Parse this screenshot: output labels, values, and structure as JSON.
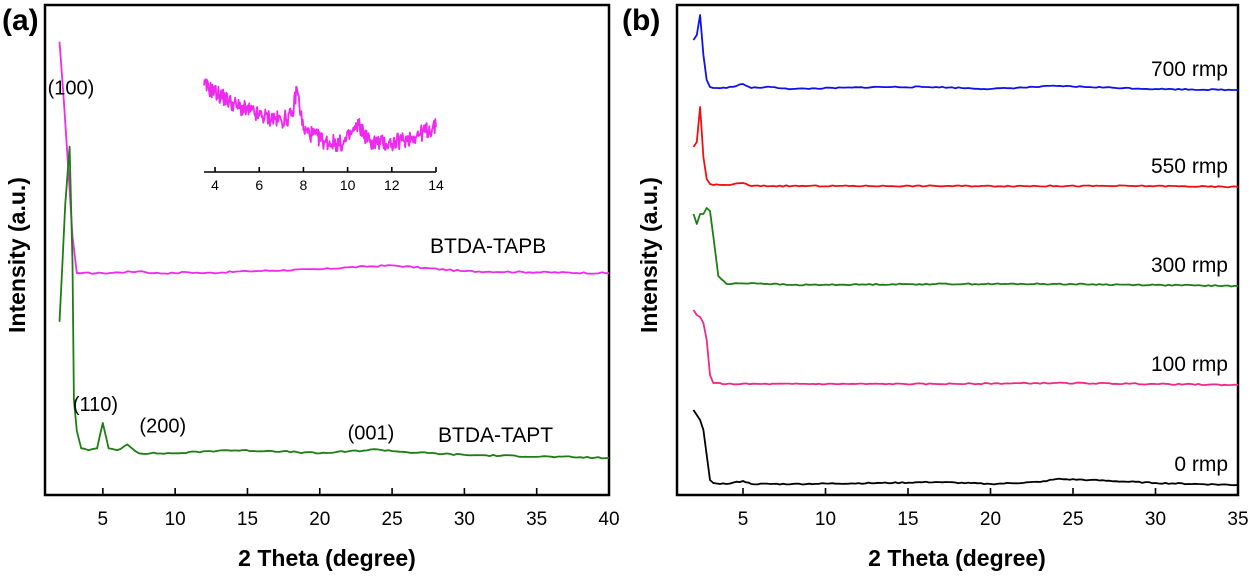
{
  "chart_data": [
    {
      "panel_label": "(a)",
      "type": "line",
      "xlabel": "2 Theta (degree)",
      "ylabel": "Intensity (a.u.)",
      "xlim": [
        1,
        40
      ],
      "x_ticks": [
        5,
        10,
        15,
        20,
        25,
        30,
        35,
        40
      ],
      "y_ticks_shown": false,
      "series": [
        {
          "name": "BTDA-TAPB",
          "color": "#ee2aee",
          "x": [
            2.0,
            2.3,
            2.6,
            2.9,
            3.2,
            3.5,
            5,
            7.7,
            8.5,
            10,
            10.7,
            12,
            15,
            20,
            22,
            25,
            30,
            40
          ],
          "y": [
            10.7,
            9.2,
            7.5,
            5.7,
            4.75,
            4.75,
            4.75,
            4.8,
            4.75,
            4.75,
            4.78,
            4.75,
            4.8,
            4.85,
            4.9,
            4.95,
            4.8,
            4.75
          ]
        },
        {
          "name": "BTDA-TAPT",
          "color": "#1e7d14",
          "x": [
            2.0,
            2.4,
            2.7,
            2.9,
            3.0,
            3.2,
            3.5,
            4.0,
            4.6,
            5.0,
            5.4,
            6.0,
            6.7,
            7.5,
            10,
            13.4,
            16.7,
            20,
            24,
            26,
            30,
            40
          ],
          "y": [
            3.5,
            6.5,
            8.0,
            5.0,
            1.5,
            0.7,
            0.25,
            0.2,
            0.25,
            0.9,
            0.25,
            0.2,
            0.35,
            0.12,
            0.12,
            0.2,
            0.18,
            0.12,
            0.22,
            0.15,
            0.08,
            0.0
          ]
        }
      ],
      "annotations": [
        {
          "text": "(100)",
          "x": 2.7,
          "y": 8.0
        },
        {
          "text": "(110)",
          "x": 5.0,
          "y": 0.9
        },
        {
          "text": "(200)",
          "x": 6.7,
          "y": 0.35
        },
        {
          "text": "(001)",
          "x": 24.0,
          "y": 0.22
        }
      ],
      "inset": {
        "xlim": [
          3.5,
          14
        ],
        "x_ticks": [
          4,
          6,
          8,
          10,
          12,
          14
        ],
        "series_color": "#ee2aee",
        "x": [
          3.5,
          4.0,
          5.0,
          6.0,
          7.0,
          7.5,
          7.7,
          8.0,
          9.0,
          9.8,
          10.5,
          11.0,
          12.0,
          13.0,
          14.0
        ],
        "y": [
          0.92,
          0.85,
          0.7,
          0.6,
          0.55,
          0.6,
          0.9,
          0.45,
          0.32,
          0.3,
          0.5,
          0.32,
          0.3,
          0.38,
          0.48
        ]
      }
    },
    {
      "panel_label": "(b)",
      "type": "line",
      "xlabel": "2 Theta (degree)",
      "ylabel": "Intensity (a.u.)",
      "xlim": [
        1,
        35
      ],
      "x_ticks": [
        5,
        10,
        15,
        20,
        25,
        30,
        35
      ],
      "y_ticks_shown": false,
      "series": [
        {
          "name": "700 rmp",
          "color": "#1010ee",
          "offset": 4,
          "x": [
            2.0,
            2.2,
            2.4,
            2.6,
            2.8,
            3.0,
            3.2,
            4,
            5.0,
            5.5,
            6.7,
            8,
            13.4,
            16.7,
            20,
            24,
            26,
            30,
            35
          ],
          "y": [
            0.5,
            0.55,
            0.75,
            0.35,
            0.1,
            0.03,
            0.02,
            0.02,
            0.06,
            0.02,
            0.03,
            0.01,
            0.03,
            0.03,
            0.01,
            0.04,
            0.03,
            0.01,
            0.0
          ]
        },
        {
          "name": "550 rmp",
          "color": "#ee1010",
          "offset": 3,
          "x": [
            2.0,
            2.2,
            2.4,
            2.6,
            2.8,
            3.0,
            3.2,
            4,
            5.0,
            5.5,
            8,
            16.7,
            24,
            30,
            35
          ],
          "y": [
            0.4,
            0.45,
            0.8,
            0.3,
            0.08,
            0.03,
            0.02,
            0.02,
            0.04,
            0.01,
            0.01,
            0.01,
            0.01,
            0.01,
            0.0
          ]
        },
        {
          "name": "300 rmp",
          "color": "#1e7d14",
          "offset": 2,
          "x": [
            2.0,
            2.2,
            2.4,
            2.6,
            2.8,
            3.0,
            3.2,
            3.5,
            4,
            5.5,
            8,
            16.7,
            24,
            30,
            35
          ],
          "y": [
            0.72,
            0.62,
            0.72,
            0.72,
            0.78,
            0.75,
            0.5,
            0.1,
            0.02,
            0.03,
            0.01,
            0.02,
            0.02,
            0.01,
            0.0
          ]
        },
        {
          "name": "100 rmp",
          "color": "#ee2a84",
          "offset": 1,
          "x": [
            2.0,
            2.2,
            2.4,
            2.6,
            2.8,
            3.0,
            3.2,
            4,
            8,
            16.7,
            24,
            30,
            35
          ],
          "y": [
            0.75,
            0.7,
            0.68,
            0.62,
            0.45,
            0.1,
            0.02,
            0.01,
            0.01,
            0.01,
            0.02,
            0.01,
            0.0
          ]
        },
        {
          "name": "0 rmp",
          "color": "#000000",
          "offset": 0,
          "x": [
            2.0,
            2.2,
            2.4,
            2.6,
            2.8,
            3.0,
            3.2,
            4,
            5.0,
            5.5,
            8,
            13.4,
            16.7,
            20,
            23,
            24,
            26,
            30,
            35
          ],
          "y": [
            0.75,
            0.7,
            0.65,
            0.55,
            0.3,
            0.05,
            0.02,
            0.01,
            0.04,
            0.01,
            0.01,
            0.02,
            0.03,
            0.01,
            0.03,
            0.06,
            0.05,
            0.02,
            0.0
          ]
        }
      ]
    }
  ]
}
